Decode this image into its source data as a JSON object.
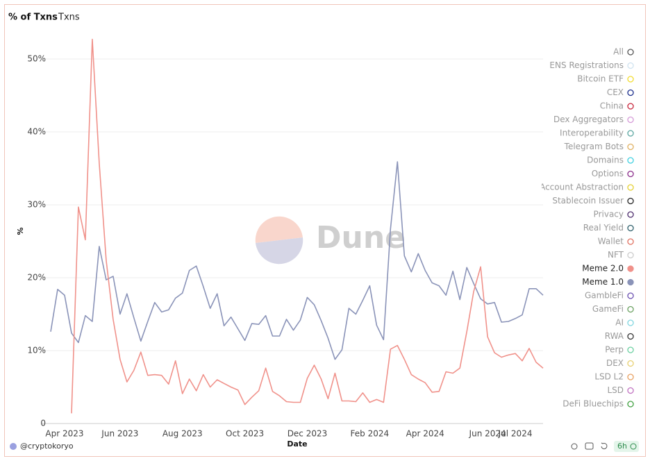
{
  "tabs": [
    "% of Txns",
    "Txns"
  ],
  "chart_data": {
    "type": "line",
    "xlabel": "Date",
    "ylabel": "%",
    "watermark": "Dune",
    "categories": [
      null,
      null,
      "Apr 2023",
      null,
      null,
      null,
      null,
      null,
      null,
      null,
      "Jun 2023",
      null,
      null,
      null,
      null,
      null,
      null,
      null,
      null,
      "Aug 2023",
      null,
      null,
      null,
      null,
      null,
      null,
      null,
      null,
      "Oct 2023",
      null,
      null,
      null,
      null,
      null,
      null,
      null,
      null,
      "Dec 2023",
      null,
      null,
      null,
      null,
      null,
      null,
      null,
      null,
      "Feb 2024",
      null,
      null,
      null,
      null,
      null,
      null,
      null,
      "Apr 2024",
      null,
      null,
      null,
      null,
      null,
      null,
      null,
      null,
      "Jun 2024",
      null,
      null,
      null,
      "Jul 2024",
      null,
      null,
      null,
      null
    ],
    "ylim": [
      0,
      54
    ],
    "yticks": [
      0,
      {
        "value": 10,
        "label": "10%"
      },
      {
        "value": 20,
        "label": "20%"
      },
      {
        "value": 30,
        "label": "30%"
      },
      {
        "value": 40,
        "label": "40%"
      },
      {
        "value": 50,
        "label": "50%"
      }
    ],
    "grid": true,
    "series": [
      {
        "name": "Meme 1.0",
        "color": "#8a93b8",
        "values": [
          12.6,
          18.4,
          17.6,
          12.4,
          11.1,
          14.8,
          14.0,
          24.3,
          19.7,
          20.2,
          15.0,
          17.8,
          14.5,
          11.3,
          14.0,
          16.6,
          15.3,
          15.6,
          17.2,
          17.9,
          21.0,
          21.6,
          18.8,
          15.8,
          17.8,
          13.4,
          14.6,
          13.0,
          11.4,
          13.7,
          13.6,
          14.8,
          12.0,
          12.0,
          14.3,
          12.8,
          14.2,
          17.3,
          16.3,
          14.1,
          11.7,
          8.8,
          10.1,
          15.8,
          15.0,
          16.9,
          18.9,
          13.5,
          11.5,
          26.7,
          35.9,
          23.0,
          20.8,
          23.3,
          21.0,
          19.3,
          18.9,
          17.6,
          20.9,
          17.0,
          21.4,
          19.2,
          17.1,
          16.4,
          16.6,
          13.9,
          14.0,
          14.4,
          14.9,
          18.5,
          18.5,
          17.6
        ]
      },
      {
        "name": "Meme 2.0",
        "color": "#f0918a",
        "values": [
          null,
          null,
          null,
          1.4,
          29.7,
          25.2,
          52.7,
          35.7,
          22.4,
          14.3,
          8.8,
          5.7,
          7.3,
          9.8,
          6.6,
          6.7,
          6.6,
          5.4,
          8.6,
          4.1,
          6.1,
          4.5,
          6.7,
          5.0,
          6.0,
          5.5,
          5.0,
          4.6,
          2.6,
          3.6,
          4.5,
          7.6,
          4.4,
          3.8,
          3.0,
          2.9,
          2.9,
          6.2,
          8.0,
          6.1,
          3.4,
          6.9,
          3.1,
          3.1,
          3.0,
          4.2,
          2.9,
          3.3,
          2.9,
          10.2,
          10.7,
          8.8,
          6.7,
          6.1,
          5.6,
          4.3,
          4.4,
          7.1,
          6.9,
          7.6,
          12.6,
          18.1,
          21.5,
          11.9,
          9.7,
          9.1,
          9.4,
          9.6,
          8.6,
          10.3,
          8.4,
          7.6
        ]
      }
    ],
    "legend": [
      {
        "name": "All",
        "color": "#555555",
        "hidden": true
      },
      {
        "name": "ENS Registrations",
        "color": "#cfe3f0",
        "hidden": true
      },
      {
        "name": "Bitcoin ETF",
        "color": "#f2dc2e",
        "hidden": true
      },
      {
        "name": "CEX",
        "color": "#1a2d8c",
        "hidden": true
      },
      {
        "name": "China",
        "color": "#c7243a",
        "hidden": true
      },
      {
        "name": "Dex Aggregators",
        "color": "#d59ad8",
        "hidden": true
      },
      {
        "name": "Interoperability",
        "color": "#5aa6a0",
        "hidden": true
      },
      {
        "name": "Telegram Bots",
        "color": "#e0b060",
        "hidden": true
      },
      {
        "name": "Domains",
        "color": "#3fd0e0",
        "hidden": true
      },
      {
        "name": "Options",
        "color": "#8a2c8a",
        "hidden": true
      },
      {
        "name": "Account Abstraction",
        "color": "#e5d030",
        "hidden": true
      },
      {
        "name": "Stablecoin Issuer",
        "color": "#222222",
        "hidden": true
      },
      {
        "name": "Privacy",
        "color": "#4b2a6b",
        "hidden": true
      },
      {
        "name": "Real Yield",
        "color": "#2e5f6b",
        "hidden": true
      },
      {
        "name": "Wallet",
        "color": "#e07060",
        "hidden": true
      },
      {
        "name": "NFT",
        "color": "#cccccc",
        "hidden": true
      },
      {
        "name": "Meme 2.0"
      },
      {
        "name": "Meme 1.0"
      },
      {
        "name": "GambleFi",
        "color": "#6a4fb0",
        "hidden": true
      },
      {
        "name": "GameFi",
        "color": "#6aa060",
        "hidden": true
      },
      {
        "name": "AI",
        "color": "#7fd6e0",
        "hidden": true
      },
      {
        "name": "RWA",
        "color": "#333333",
        "hidden": true
      },
      {
        "name": "Perp",
        "color": "#6ad0a0",
        "hidden": true
      },
      {
        "name": "DEX",
        "color": "#e8d070",
        "hidden": true
      },
      {
        "name": "LSD L2",
        "color": "#e8a060",
        "hidden": true
      },
      {
        "name": "LSD",
        "color": "#c070c0",
        "hidden": true
      },
      {
        "name": "DeFi Bluechips",
        "color": "#40a040",
        "hidden": true
      }
    ]
  },
  "footer": {
    "author": "@cryptokoryo",
    "refresh": "6h"
  }
}
